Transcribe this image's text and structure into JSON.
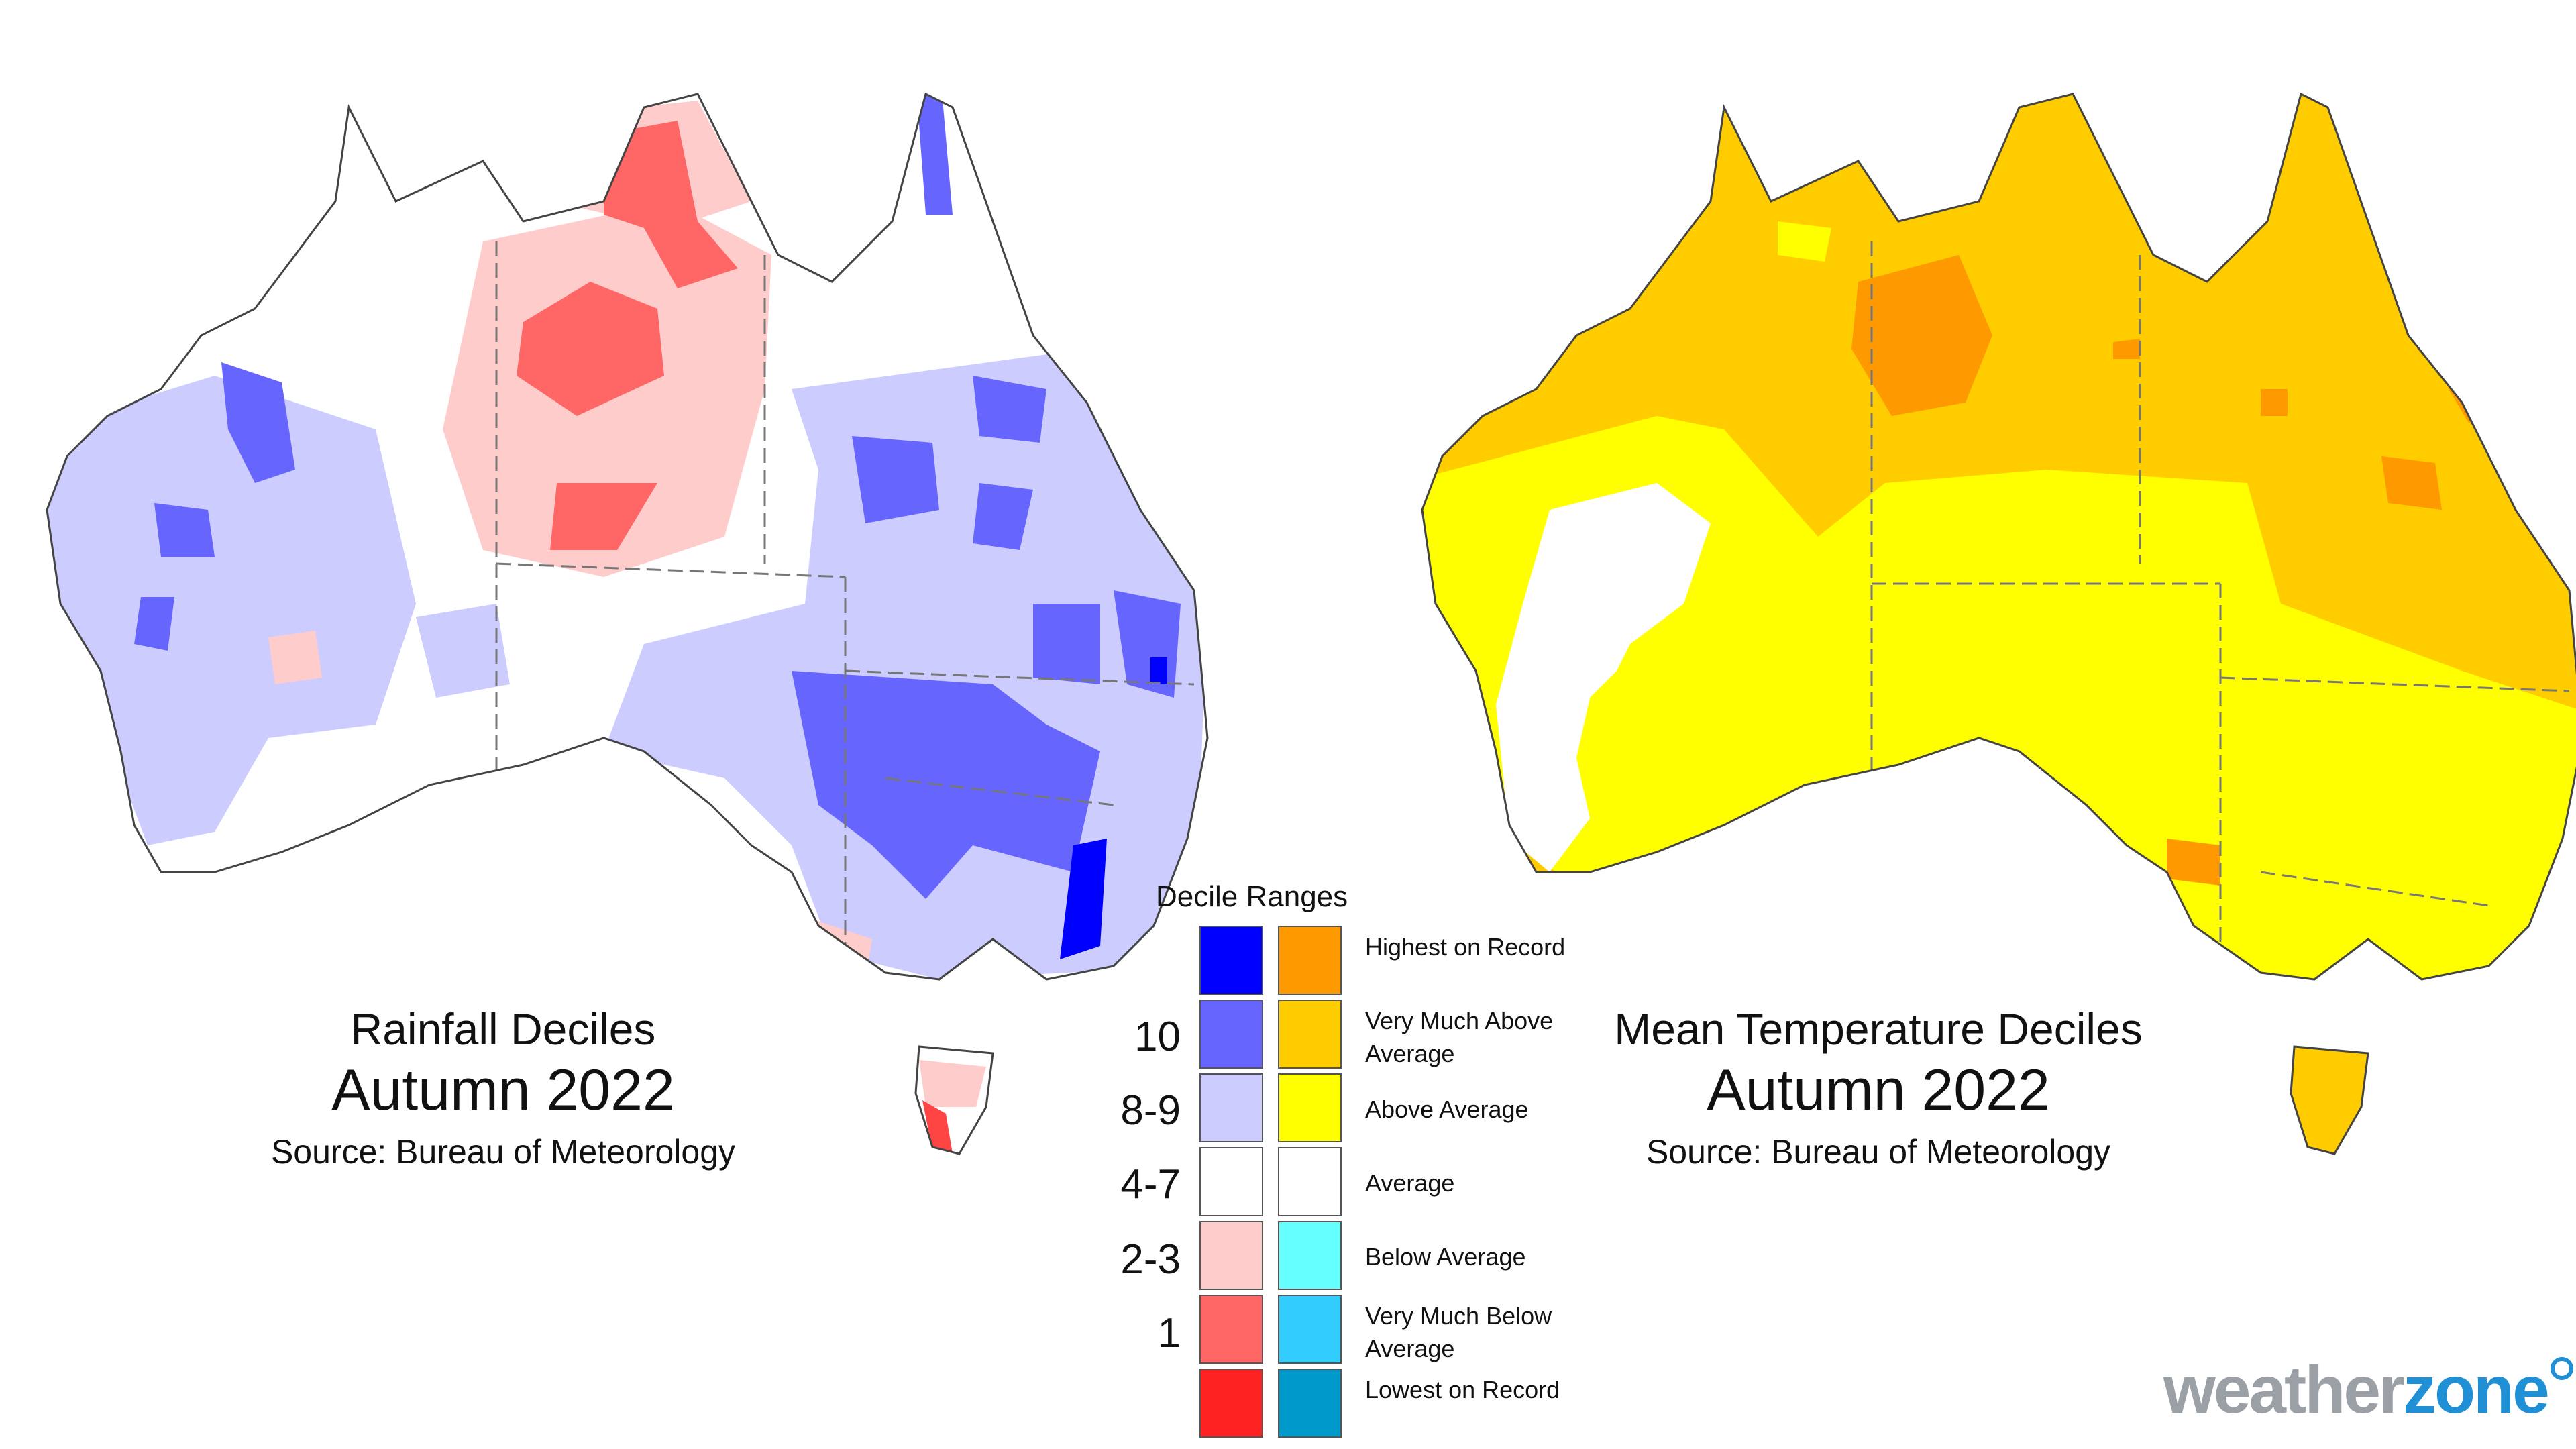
{
  "rainfall_map": {
    "title": "Rainfall Deciles",
    "period": "Autumn 2022",
    "source": "Source: Bureau of Meteorology"
  },
  "temperature_map": {
    "title": "Mean Temperature Deciles",
    "period": "Autumn 2022",
    "source": "Source: Bureau of Meteorology"
  },
  "legend": {
    "title": "Decile Ranges",
    "decile_labels": [
      "10",
      "8-9",
      "4-7",
      "2-3",
      "1"
    ],
    "rows": [
      {
        "category": "Highest on Record",
        "rain_color": "#0000ff",
        "temp_color": "#ff9900"
      },
      {
        "category": "Very Much Above Average",
        "rain_color": "#6666ff",
        "temp_color": "#ffcc00"
      },
      {
        "category": "Above Average",
        "rain_color": "#ccccff",
        "temp_color": "#ffff00"
      },
      {
        "category": "Average",
        "rain_color": "#ffffff",
        "temp_color": "#ffffff"
      },
      {
        "category": "Below Average",
        "rain_color": "#ffcccc",
        "temp_color": "#66ffff"
      },
      {
        "category": "Very Much Below Average",
        "rain_color": "#ff6666",
        "temp_color": "#33ccff"
      },
      {
        "category": "Lowest on Record",
        "rain_color": "#ff2222",
        "temp_color": "#0099cc"
      }
    ]
  },
  "brand": {
    "part1": "weather",
    "part2": "zone",
    "accent": "#1f8fd6"
  }
}
